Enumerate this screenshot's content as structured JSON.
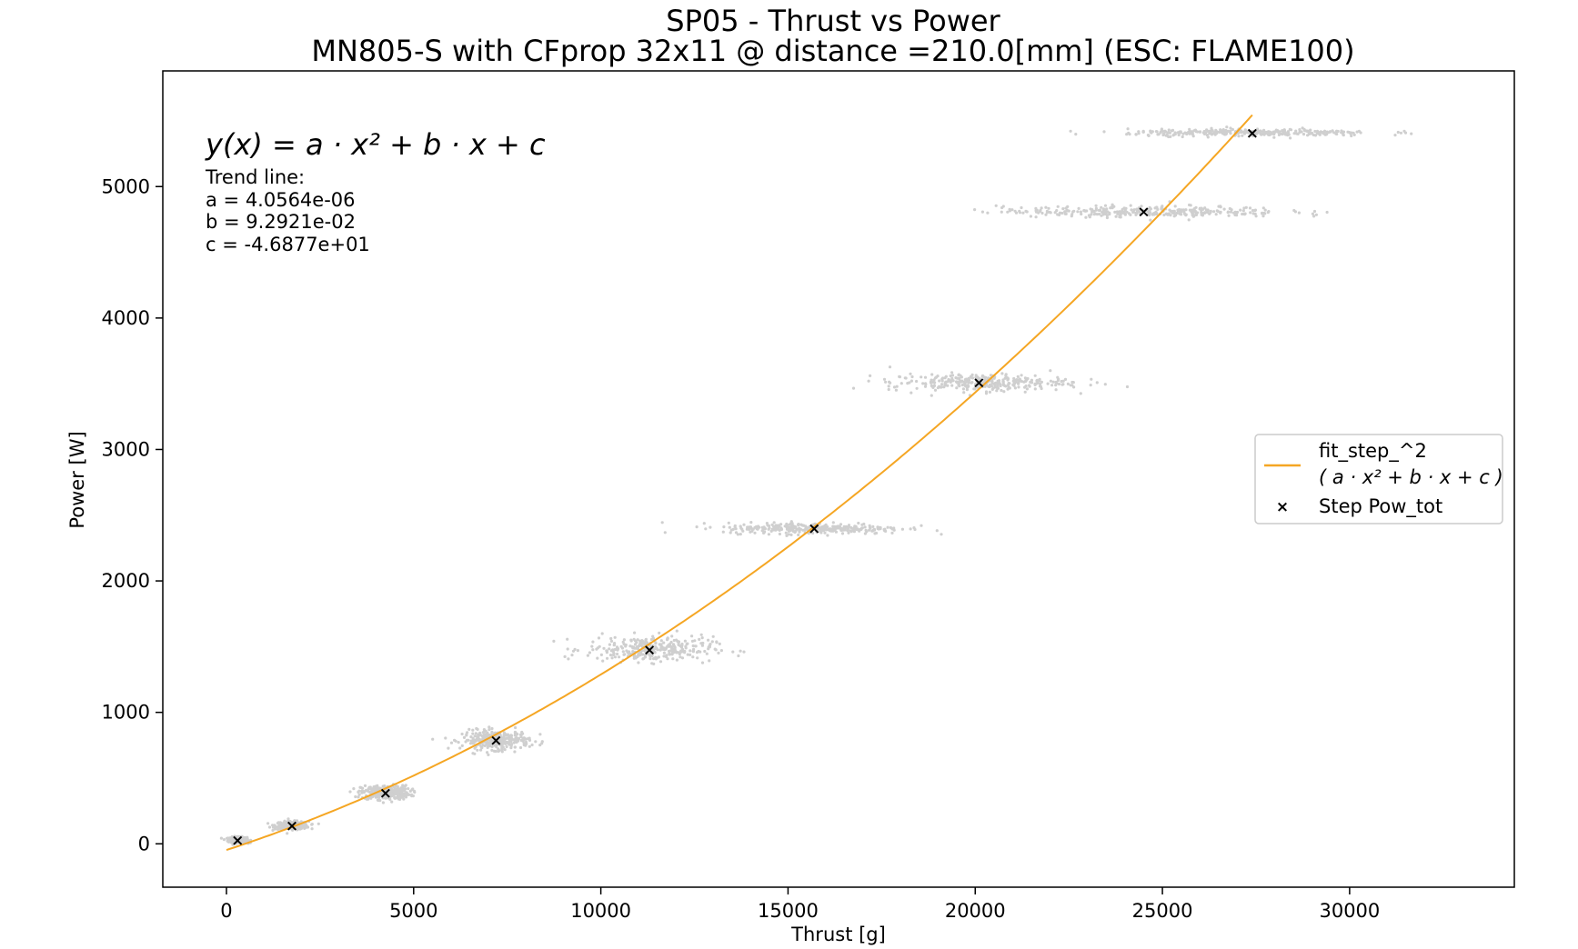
{
  "chart_data": {
    "type": "scatter",
    "title_line1": "SP05 - Thrust vs Power",
    "title_line2": "MN805-S with CFprop 32x11 @ distance =210.0[mm] (ESC: FLAME100)",
    "xlabel": "Thrust [g]",
    "ylabel": "Power [W]",
    "xlim": [
      -1700,
      34400
    ],
    "ylim": [
      -330,
      5880
    ],
    "xticks": [
      0,
      5000,
      10000,
      15000,
      20000,
      25000,
      30000
    ],
    "yticks": [
      0,
      1000,
      2000,
      3000,
      4000,
      5000
    ],
    "xtick_labels": [
      "0",
      "5000",
      "10000",
      "15000",
      "20000",
      "25000",
      "30000"
    ],
    "ytick_labels": [
      "0",
      "1000",
      "2000",
      "3000",
      "4000",
      "5000"
    ],
    "grid": false,
    "legend_position": "center-right",
    "annotation": {
      "formula": "y(x) = a · x² + b · x + c",
      "heading": "Trend line:",
      "a_text": "a = 4.0564e-06",
      "b_text": "b = 9.2921e-02",
      "c_text": "c = -4.6877e+01"
    },
    "fit": {
      "a": 4.0564e-06,
      "b": 0.092921,
      "c": -46.877,
      "x_range": [
        0,
        27400
      ],
      "color": "#f5a623"
    },
    "series": [
      {
        "name": "Step Pow_tot",
        "marker": "x",
        "color": "#000000",
        "points": [
          {
            "x": 300,
            "y": 30
          },
          {
            "x": 1750,
            "y": 140
          },
          {
            "x": 4250,
            "y": 390
          },
          {
            "x": 7200,
            "y": 790
          },
          {
            "x": 11300,
            "y": 1480
          },
          {
            "x": 15700,
            "y": 2400
          },
          {
            "x": 20100,
            "y": 3510
          },
          {
            "x": 24500,
            "y": 4810
          },
          {
            "x": 27400,
            "y": 5410
          }
        ]
      }
    ],
    "raw_clusters": {
      "color": "#cfcfcf",
      "clusters": [
        {
          "x": 300,
          "y": 30,
          "sx": 250,
          "sy": 18
        },
        {
          "x": 1750,
          "y": 140,
          "sx": 450,
          "sy": 25
        },
        {
          "x": 4250,
          "y": 390,
          "sx": 650,
          "sy": 45
        },
        {
          "x": 7200,
          "y": 790,
          "sx": 900,
          "sy": 60
        },
        {
          "x": 11300,
          "y": 1480,
          "sx": 1700,
          "sy": 80
        },
        {
          "x": 15700,
          "y": 2400,
          "sx": 2400,
          "sy": 35
        },
        {
          "x": 20100,
          "y": 3510,
          "sx": 2400,
          "sy": 55
        },
        {
          "x": 24500,
          "y": 4810,
          "sx": 3800,
          "sy": 35
        },
        {
          "x": 27400,
          "y": 5410,
          "sx": 3300,
          "sy": 22
        }
      ]
    },
    "legend": {
      "fit_label": "fit_step_^2",
      "fit_formula": "( a · x² + b · x + c )",
      "points_label": "Step Pow_tot"
    }
  }
}
